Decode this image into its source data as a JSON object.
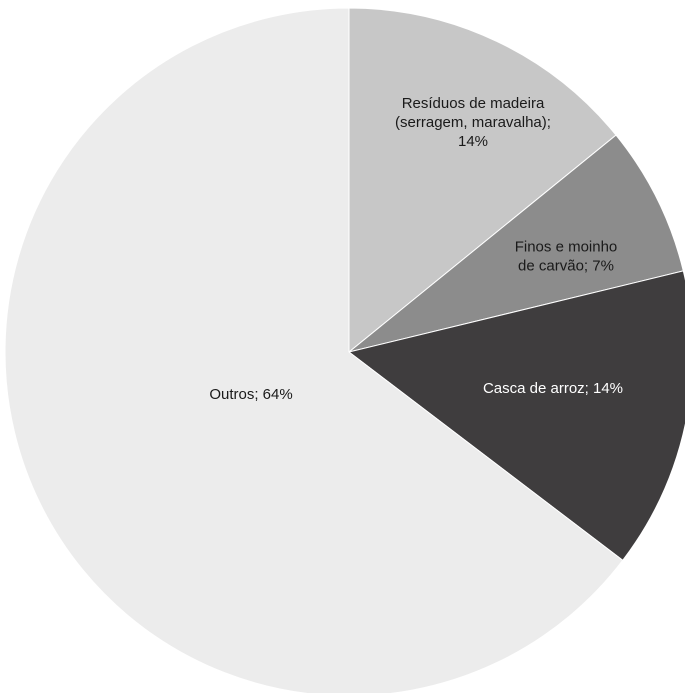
{
  "chart_data": {
    "type": "pie",
    "start": "12 o'clock",
    "direction": "clockwise",
    "slices": [
      {
        "label_lines": [
          "Resíduos de madeira",
          "(serragem, maravalha);",
          "14%"
        ],
        "value": 14,
        "color": "#c7c7c7",
        "text_color": "#1a1a1a"
      },
      {
        "label_lines": [
          "Finos e moinho",
          "de carvão; 7%"
        ],
        "value": 7,
        "color": "#8c8c8c",
        "text_color": "#1a1a1a"
      },
      {
        "label_lines": [
          "Casca de arroz; 14%"
        ],
        "value": 14,
        "color": "#3f3d3e",
        "text_color": "#ffffff"
      },
      {
        "label_lines": [
          "Outros; 64%"
        ],
        "value": 64,
        "color": "#ececec",
        "text_color": "#1a1a1a"
      }
    ]
  }
}
